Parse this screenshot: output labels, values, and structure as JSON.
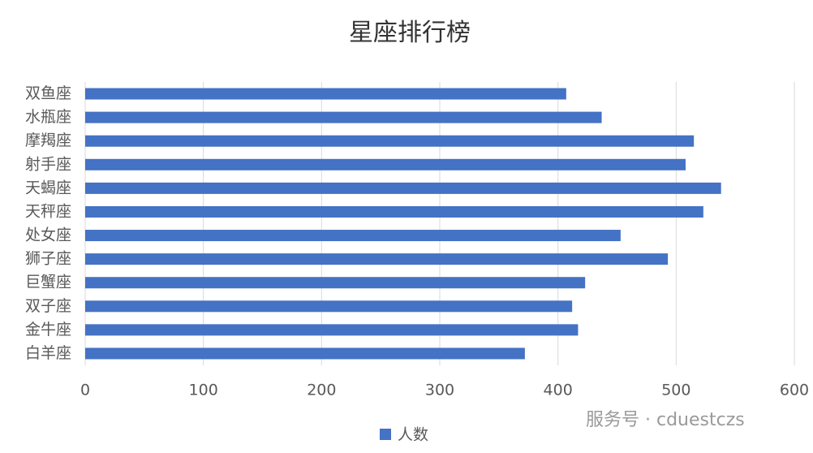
{
  "chart_data": {
    "type": "bar",
    "orientation": "horizontal",
    "title": "星座排行榜",
    "categories": [
      "双鱼座",
      "水瓶座",
      "摩羯座",
      "射手座",
      "天蝎座",
      "天秤座",
      "处女座",
      "狮子座",
      "巨蟹座",
      "双子座",
      "金牛座",
      "白羊座"
    ],
    "series": [
      {
        "name": "人数",
        "color": "#4472c4",
        "values": [
          407,
          437,
          515,
          508,
          538,
          523,
          453,
          493,
          423,
          412,
          417,
          372
        ]
      }
    ],
    "xlim": [
      0,
      600
    ],
    "xticks": [
      0,
      100,
      200,
      300,
      400,
      500,
      600
    ],
    "grid": true,
    "legend": "bottom",
    "watermark": "服务号 · cduestczs"
  }
}
